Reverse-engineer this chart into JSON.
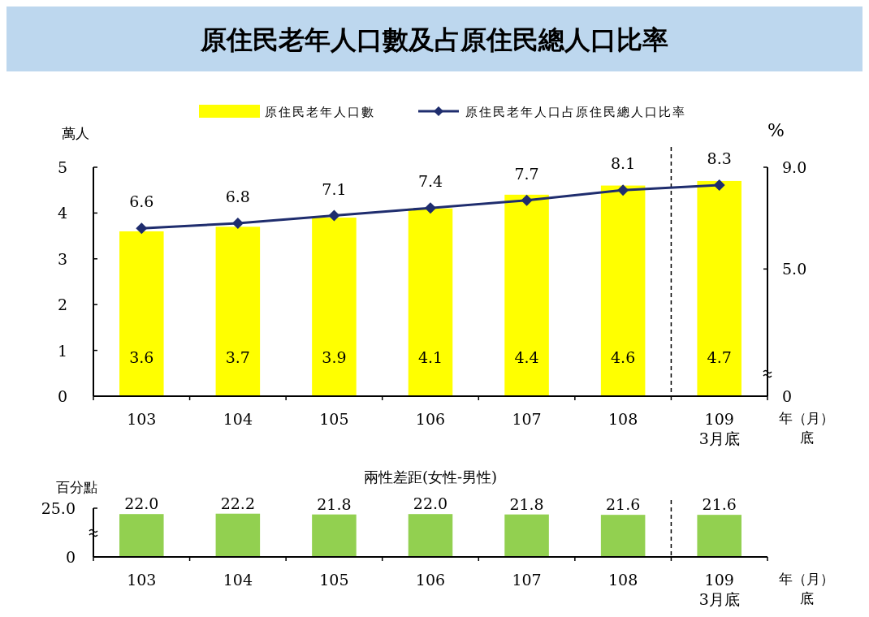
{
  "chart_data": [
    {
      "type": "bar",
      "title": "原住民老年人口數及占原住民總人口比率",
      "categories": [
        "103",
        "104",
        "105",
        "106",
        "107",
        "108",
        "109\n3月底"
      ],
      "xlabel": "年（月）底",
      "ylabel": "萬人",
      "y2label": "%",
      "ylim": [
        0,
        5
      ],
      "yticks": [
        0,
        1,
        2,
        3,
        4,
        5
      ],
      "y2lim": [
        0,
        9
      ],
      "y2ticks": [
        0,
        {
          "value": 5,
          "label": "5.0"
        },
        {
          "value": 9,
          "label": "9.0"
        }
      ],
      "series": [
        {
          "name": "原住民老年人口數",
          "color": "#ffff00",
          "values": [
            3.6,
            3.7,
            3.9,
            4.1,
            4.4,
            4.6,
            4.7
          ]
        },
        {
          "name": "原住民老年人口占原住民總人口比率",
          "type": "line",
          "axis": "y2",
          "color": "#1f2d6e",
          "values": [
            6.6,
            6.8,
            7.1,
            7.4,
            7.7,
            8.1,
            8.3
          ]
        }
      ],
      "marker": "diamond",
      "data_labels": true,
      "legend": "top"
    },
    {
      "type": "bar",
      "title": "兩性差距(女性-男性)",
      "categories": [
        "103",
        "104",
        "105",
        "106",
        "107",
        "108",
        "109\n3月底"
      ],
      "xlabel": "年（月）底",
      "ylabel": "百分點",
      "ylim": [
        0,
        25
      ],
      "yticks": [
        0,
        {
          "value": 25,
          "label": "25.0"
        }
      ],
      "series": [
        {
          "color": "#92d050",
          "values": [
            22.0,
            22.2,
            21.8,
            22.0,
            21.8,
            21.6,
            21.6
          ],
          "value_labels": [
            "22.0",
            "22.2",
            "21.8",
            "22.0",
            "21.8",
            "21.6",
            "21.6"
          ]
        }
      ]
    }
  ]
}
